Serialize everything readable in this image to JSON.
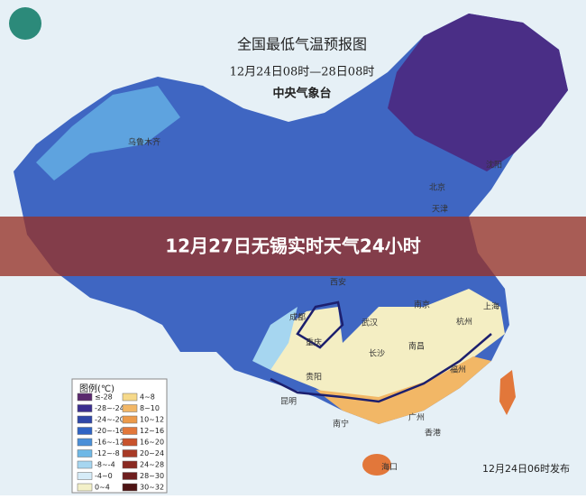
{
  "header": {
    "title": "全国最低气温预报图",
    "subtitle": "12月24日08时—28日08时",
    "agency": "中央气象台"
  },
  "banner": {
    "text": "12月27日无锡实时天气24小时"
  },
  "legend": {
    "title": "图例(℃)",
    "items": [
      {
        "label": "≤-28",
        "color": "#5a2a6e"
      },
      {
        "label": "-28~-24",
        "color": "#3b2f8f"
      },
      {
        "label": "-24~-20",
        "color": "#2f47a8"
      },
      {
        "label": "-20~-16",
        "color": "#2f63c4"
      },
      {
        "label": "-16~-12",
        "color": "#4a8fd8"
      },
      {
        "label": "-12~-8",
        "color": "#6fb8e6"
      },
      {
        "label": "-8~-4",
        "color": "#a6d6f0"
      },
      {
        "label": "-4~0",
        "color": "#d6ecf8"
      },
      {
        "label": "0~4",
        "color": "#f3f0c8"
      },
      {
        "label": "4~8",
        "color": "#f6d98a"
      },
      {
        "label": "8~10",
        "color": "#f2b766"
      },
      {
        "label": "10~12",
        "color": "#ec9a4a"
      },
      {
        "label": "12~16",
        "color": "#e2773a"
      },
      {
        "label": "16~20",
        "color": "#c8522c"
      },
      {
        "label": "20~24",
        "color": "#a83a26"
      },
      {
        "label": "24~28",
        "color": "#8a2a22"
      },
      {
        "label": "28~30",
        "color": "#6e1e1e"
      },
      {
        "label": "30~32",
        "color": "#4e1414"
      }
    ]
  },
  "cities": [
    "乌鲁木齐",
    "北京",
    "天津",
    "沈阳",
    "西安",
    "成都",
    "重庆",
    "武汉",
    "南京",
    "上海",
    "杭州",
    "长沙",
    "南昌",
    "贵阳",
    "昆明",
    "福州",
    "广州",
    "南宁",
    "香港",
    "海口"
  ],
  "footer": {
    "issued": "12月24日06时发布"
  }
}
